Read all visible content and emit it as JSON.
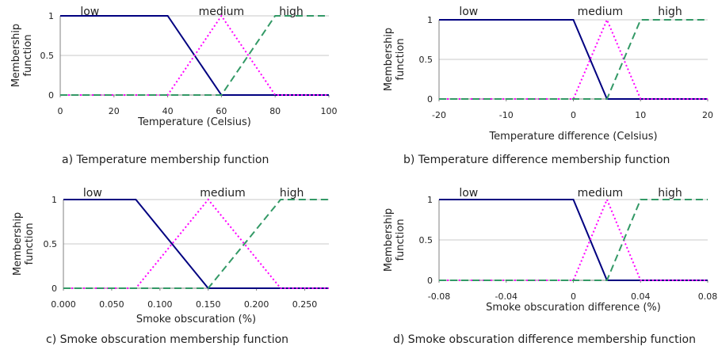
{
  "colors": {
    "low": "#000080",
    "medium": "#ff00ff",
    "high": "#339966",
    "grid": "#c8c8c8",
    "axis": "#808080"
  },
  "chart_data": [
    {
      "type": "line",
      "caption": "a) Temperature membership function",
      "xlabel": "Temperature (Celsius)",
      "ylabel": [
        "Membership",
        "function"
      ],
      "xlim": [
        0,
        100
      ],
      "ylim": [
        0,
        1
      ],
      "x_ticks": [
        "0",
        "20",
        "40",
        "60",
        "80",
        "100"
      ],
      "y_ticks": [
        "0",
        "0.5",
        "1"
      ],
      "grid": "horizontal",
      "series": [
        {
          "name": "low",
          "points": [
            [
              0,
              1
            ],
            [
              40,
              1
            ],
            [
              60,
              0
            ],
            [
              100,
              0
            ]
          ]
        },
        {
          "name": "medium",
          "points": [
            [
              0,
              0
            ],
            [
              40,
              0
            ],
            [
              60,
              1
            ],
            [
              80,
              0
            ],
            [
              100,
              0
            ]
          ]
        },
        {
          "name": "high",
          "points": [
            [
              0,
              0
            ],
            [
              60,
              0
            ],
            [
              80,
              1
            ],
            [
              100,
              1
            ]
          ]
        }
      ]
    },
    {
      "type": "line",
      "caption": "b) Temperature difference membership function",
      "xlabel": "Temperature difference (Celsius)",
      "ylabel": [
        "Membership",
        "function"
      ],
      "xlim": [
        -20,
        20
      ],
      "ylim": [
        0,
        1
      ],
      "x_ticks": [
        "-20",
        "-10",
        "0",
        "10",
        "20"
      ],
      "y_ticks": [
        "0",
        "0.5",
        "1"
      ],
      "grid": "horizontal",
      "series": [
        {
          "name": "low",
          "points": [
            [
              -20,
              1
            ],
            [
              0,
              1
            ],
            [
              5,
              0
            ],
            [
              20,
              0
            ]
          ]
        },
        {
          "name": "medium",
          "points": [
            [
              -20,
              0
            ],
            [
              0,
              0
            ],
            [
              5,
              1
            ],
            [
              10,
              0
            ],
            [
              20,
              0
            ]
          ]
        },
        {
          "name": "high",
          "points": [
            [
              -20,
              0
            ],
            [
              5,
              0
            ],
            [
              10,
              1
            ],
            [
              20,
              1
            ]
          ]
        }
      ]
    },
    {
      "type": "line",
      "caption": "c) Smoke obscuration membership function",
      "xlabel": "Smoke obscuration (%)",
      "ylabel": [
        "Membership",
        "function"
      ],
      "xlim": [
        0,
        0.275
      ],
      "ylim": [
        0,
        1
      ],
      "x_ticks": [
        "0.000",
        "0.050",
        "0.100",
        "0.150",
        "0.200",
        "0.250"
      ],
      "x_tick_values": [
        0,
        0.05,
        0.1,
        0.15,
        0.2,
        0.25
      ],
      "y_ticks": [
        "0",
        "0.5",
        "1"
      ],
      "grid": "horizontal",
      "series": [
        {
          "name": "low",
          "points": [
            [
              0,
              1
            ],
            [
              0.075,
              1
            ],
            [
              0.15,
              0
            ],
            [
              0.275,
              0
            ]
          ]
        },
        {
          "name": "medium",
          "points": [
            [
              0,
              0
            ],
            [
              0.075,
              0
            ],
            [
              0.15,
              1
            ],
            [
              0.225,
              0
            ],
            [
              0.275,
              0
            ]
          ]
        },
        {
          "name": "high",
          "points": [
            [
              0,
              0
            ],
            [
              0.15,
              0
            ],
            [
              0.225,
              1
            ],
            [
              0.275,
              1
            ]
          ]
        }
      ]
    },
    {
      "type": "line",
      "caption": "d) Smoke obscuration difference membership function",
      "xlabel": "Smoke obscuration difference (%)",
      "ylabel": [
        "Membership",
        "function"
      ],
      "xlim": [
        -0.08,
        0.08
      ],
      "ylim": [
        0,
        1
      ],
      "x_ticks": [
        "-0.08",
        "-0.04",
        "0",
        "0.04",
        "0.08"
      ],
      "y_ticks": [
        "0",
        "0.5",
        "1"
      ],
      "grid": "horizontal",
      "series": [
        {
          "name": "low",
          "points": [
            [
              -0.08,
              1
            ],
            [
              0,
              1
            ],
            [
              0.02,
              0
            ],
            [
              0.08,
              0
            ]
          ]
        },
        {
          "name": "medium",
          "points": [
            [
              -0.08,
              0
            ],
            [
              0,
              0
            ],
            [
              0.02,
              1
            ],
            [
              0.04,
              0
            ],
            [
              0.08,
              0
            ]
          ]
        },
        {
          "name": "high",
          "points": [
            [
              -0.08,
              0
            ],
            [
              0.02,
              0
            ],
            [
              0.04,
              1
            ],
            [
              0.08,
              1
            ]
          ]
        }
      ]
    }
  ]
}
